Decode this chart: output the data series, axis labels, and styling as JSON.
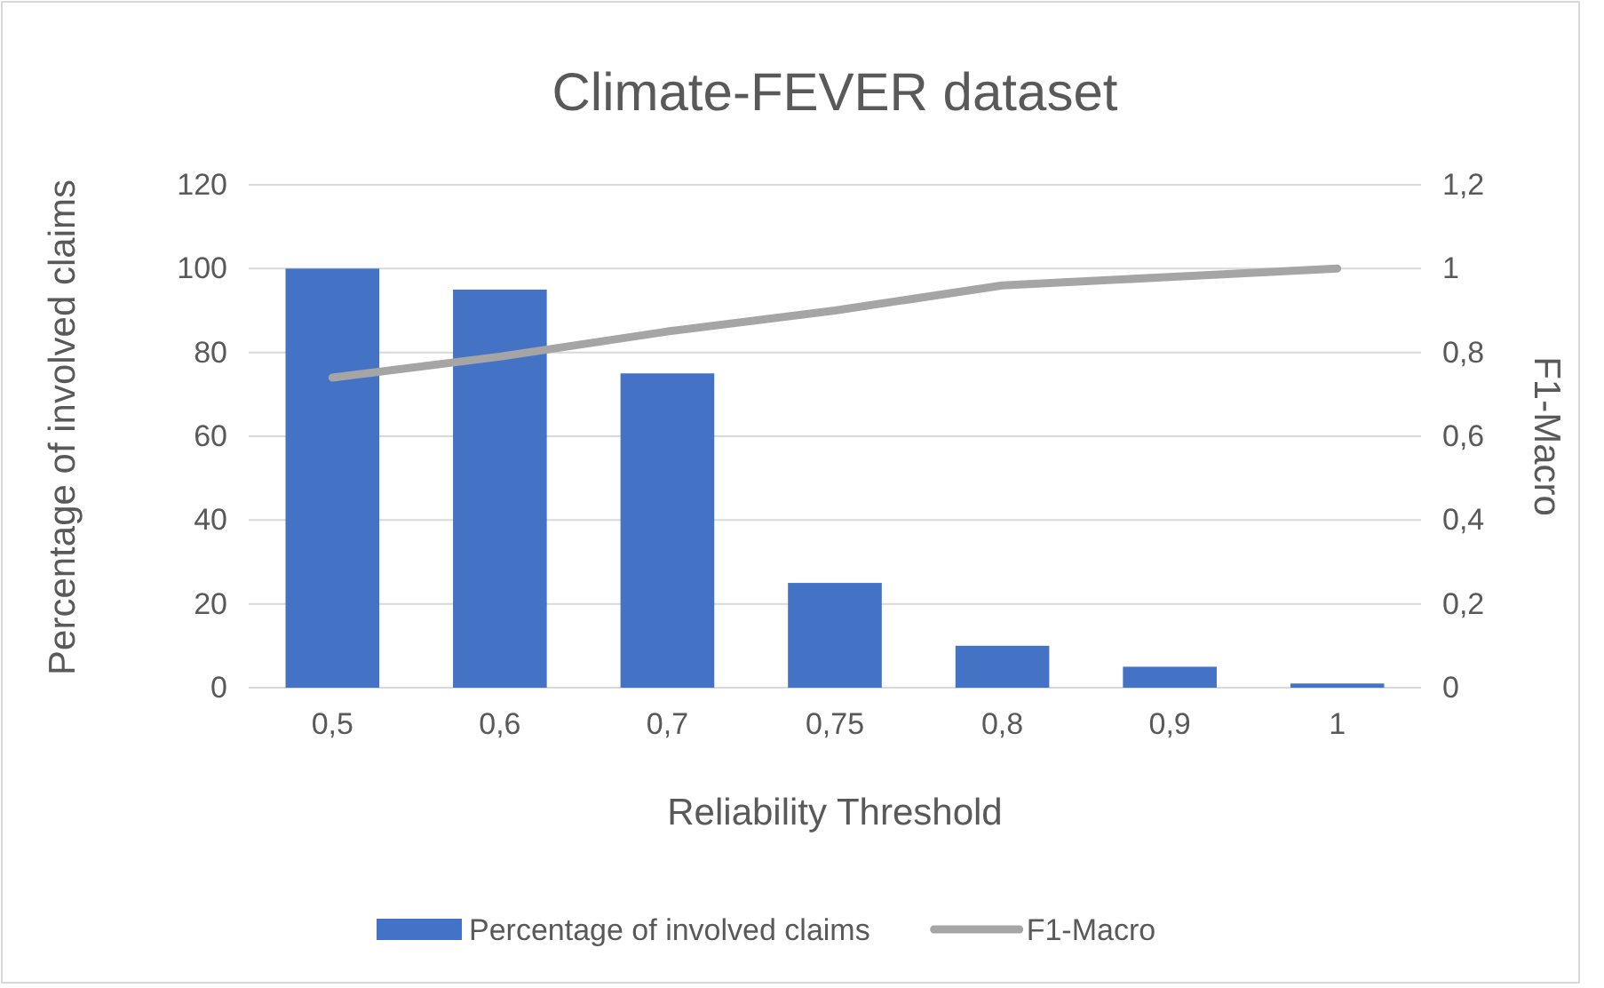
{
  "chart_data": {
    "type": "bar",
    "title": "Climate-FEVER dataset",
    "xlabel": "Reliability Threshold",
    "ylabel": "Percentage of involved claims",
    "y2label": "F1-Macro",
    "categories": [
      "0,5",
      "0,6",
      "0,7",
      "0,75",
      "0,8",
      "0,9",
      "1"
    ],
    "series": [
      {
        "name": "Percentage of involved claims",
        "color": "#4472c4",
        "values": [
          100,
          95,
          75,
          25,
          10,
          5,
          1
        ]
      },
      {
        "name": "F1-Macro",
        "type": "line",
        "axis": "y2",
        "color": "#a5a5a5",
        "values": [
          0.74,
          0.79,
          0.85,
          0.9,
          0.96,
          0.98,
          1.0
        ]
      }
    ],
    "ylim": [
      0,
      120
    ],
    "yticks": [
      0,
      20,
      40,
      60,
      80,
      100,
      120
    ],
    "y2lim": [
      0,
      1.2
    ],
    "y2ticks": [
      {
        "value": 0,
        "label": "0"
      },
      {
        "value": 0.2,
        "label": "0,2"
      },
      {
        "value": 0.4,
        "label": "0,4"
      },
      {
        "value": 0.6,
        "label": "0,6"
      },
      {
        "value": 0.8,
        "label": "0,8"
      },
      {
        "value": 1,
        "label": "1"
      },
      {
        "value": 1.2,
        "label": "1,2"
      }
    ],
    "grid": "y",
    "legend": "bottom",
    "line_style": "solid",
    "marker": "none"
  }
}
